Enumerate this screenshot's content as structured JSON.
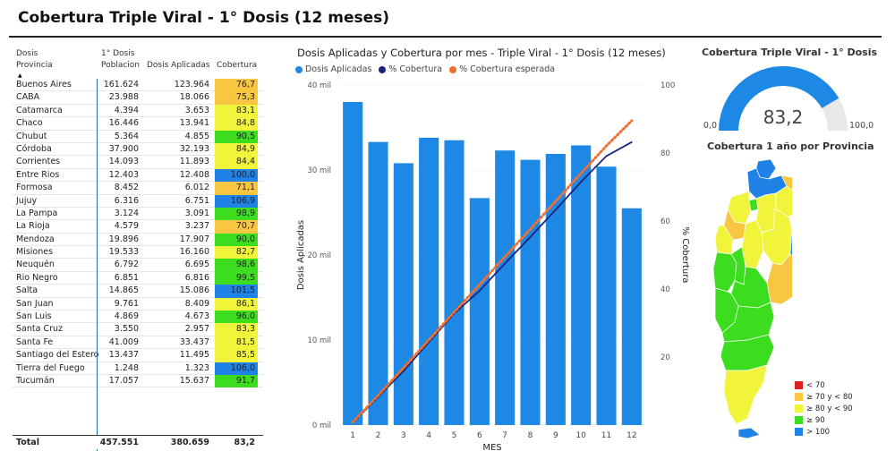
{
  "page_title": "Cobertura Triple Viral - 1° Dosis (12 meses)",
  "table": {
    "headers": {
      "dosis_top": "Dosis",
      "provincia": "Provincia",
      "dosis1_top": "1° Dosis",
      "poblacion": "Poblacion",
      "dosis_aplicadas": "Dosis Aplicadas",
      "cobertura": "Cobertura"
    },
    "rows": [
      {
        "provincia": "Buenos Aires",
        "poblacion": "161.624",
        "dosis": "123.964",
        "cobertura": "76,7",
        "color": "#f9c642"
      },
      {
        "provincia": "CABA",
        "poblacion": "23.988",
        "dosis": "18.066",
        "cobertura": "75,3",
        "color": "#f9c642"
      },
      {
        "provincia": "Catamarca",
        "poblacion": "4.394",
        "dosis": "3.653",
        "cobertura": "83,1",
        "color": "#f0f53c"
      },
      {
        "provincia": "Chaco",
        "poblacion": "16.446",
        "dosis": "13.941",
        "cobertura": "84,8",
        "color": "#f0f53c"
      },
      {
        "provincia": "Chubut",
        "poblacion": "5.364",
        "dosis": "4.855",
        "cobertura": "90,5",
        "color": "#3cdc1e"
      },
      {
        "provincia": "Córdoba",
        "poblacion": "37.900",
        "dosis": "32.193",
        "cobertura": "84,9",
        "color": "#f0f53c"
      },
      {
        "provincia": "Corrientes",
        "poblacion": "14.093",
        "dosis": "11.893",
        "cobertura": "84,4",
        "color": "#f0f53c"
      },
      {
        "provincia": "Entre Rios",
        "poblacion": "12.403",
        "dosis": "12.408",
        "cobertura": "100,0",
        "color": "#1e82e6"
      },
      {
        "provincia": "Formosa",
        "poblacion": "8.452",
        "dosis": "6.012",
        "cobertura": "71,1",
        "color": "#f9c642"
      },
      {
        "provincia": "Jujuy",
        "poblacion": "6.316",
        "dosis": "6.751",
        "cobertura": "106,9",
        "color": "#1e82e6"
      },
      {
        "provincia": "La Pampa",
        "poblacion": "3.124",
        "dosis": "3.091",
        "cobertura": "98,9",
        "color": "#3cdc1e"
      },
      {
        "provincia": "La Rioja",
        "poblacion": "4.579",
        "dosis": "3.237",
        "cobertura": "70,7",
        "color": "#f9c642"
      },
      {
        "provincia": "Mendoza",
        "poblacion": "19.896",
        "dosis": "17.907",
        "cobertura": "90,0",
        "color": "#3cdc1e"
      },
      {
        "provincia": "Misiones",
        "poblacion": "19.533",
        "dosis": "16.160",
        "cobertura": "82,7",
        "color": "#f0f53c"
      },
      {
        "provincia": "Neuquén",
        "poblacion": "6.792",
        "dosis": "6.695",
        "cobertura": "98,6",
        "color": "#3cdc1e"
      },
      {
        "provincia": "Rio Negro",
        "poblacion": "6.851",
        "dosis": "6.816",
        "cobertura": "99,5",
        "color": "#3cdc1e"
      },
      {
        "provincia": "Salta",
        "poblacion": "14.865",
        "dosis": "15.086",
        "cobertura": "101,5",
        "color": "#1e82e6"
      },
      {
        "provincia": "San Juan",
        "poblacion": "9.761",
        "dosis": "8.409",
        "cobertura": "86,1",
        "color": "#f0f53c"
      },
      {
        "provincia": "San Luis",
        "poblacion": "4.869",
        "dosis": "4.673",
        "cobertura": "96,0",
        "color": "#3cdc1e"
      },
      {
        "provincia": "Santa Cruz",
        "poblacion": "3.550",
        "dosis": "2.957",
        "cobertura": "83,3",
        "color": "#f0f53c"
      },
      {
        "provincia": "Santa Fe",
        "poblacion": "41.009",
        "dosis": "33.437",
        "cobertura": "81,5",
        "color": "#f0f53c"
      },
      {
        "provincia": "Santiago del Estero",
        "poblacion": "13.437",
        "dosis": "11.495",
        "cobertura": "85,5",
        "color": "#f0f53c"
      },
      {
        "provincia": "Tierra del Fuego",
        "poblacion": "1.248",
        "dosis": "1.323",
        "cobertura": "106,0",
        "color": "#1e82e6"
      },
      {
        "provincia": "Tucumán",
        "poblacion": "17.057",
        "dosis": "15.637",
        "cobertura": "91,7",
        "color": "#3cdc1e"
      }
    ],
    "total": {
      "label": "Total",
      "poblacion": "457.551",
      "dosis": "380.659",
      "cobertura": "83,2"
    }
  },
  "chart_data": {
    "type": "bar",
    "title": "Dosis Aplicadas y Cobertura por mes - Triple Viral - 1° Dosis (12 meses)",
    "xlabel": "MES",
    "ylabel": "Dosis Aplicadas",
    "y2label": "% Cobertura",
    "categories": [
      "1",
      "2",
      "3",
      "4",
      "5",
      "6",
      "7",
      "8",
      "9",
      "10",
      "11",
      "12"
    ],
    "ylim": [
      0,
      40000
    ],
    "y_ticks": [
      "0 mil",
      "10 mil",
      "20 mil",
      "30 mil",
      "40 mil"
    ],
    "y2lim": [
      0,
      100
    ],
    "y2_ticks": [
      "20",
      "40",
      "60",
      "80",
      "100"
    ],
    "legend": [
      "Dosis Aplicadas",
      "% Cobertura",
      "% Cobertura esperada"
    ],
    "series": [
      {
        "name": "Dosis Aplicadas",
        "kind": "bar",
        "axis": "left",
        "values": [
          38000,
          33300,
          30800,
          33800,
          33500,
          26700,
          32300,
          31200,
          31900,
          32900,
          30400,
          25500
        ]
      },
      {
        "name": "% Cobertura",
        "kind": "line",
        "axis": "right",
        "values": [
          0.6,
          8.3,
          15.9,
          24.4,
          32.8,
          39.5,
          47.5,
          55.3,
          63.3,
          71.5,
          79.1,
          83.2
        ]
      },
      {
        "name": "% Cobertura esperada",
        "kind": "dotted",
        "axis": "right",
        "values": [
          0.8,
          8.7,
          16.8,
          25.0,
          33.2,
          41.3,
          49.5,
          57.6,
          65.8,
          74.0,
          82.1,
          89.5
        ]
      }
    ],
    "colors": {
      "bar": "#1e88e5",
      "line": "#1a237e",
      "expected": "#f07030",
      "legend_dot1": "#1e88e5",
      "legend_dot2": "#1a237e",
      "legend_dot3": "#f07030"
    }
  },
  "gauge": {
    "title": "Cobertura Triple Viral - 1° Dosis",
    "value": 83.2,
    "value_label": "83,2",
    "min": 0,
    "max": 100,
    "min_label": "0,0",
    "max_label": "100,0",
    "color": "#1e88e5",
    "track_color": "#e8e8e8"
  },
  "map": {
    "title": "Cobertura 1 año por Provincia",
    "legend": [
      {
        "label": "< 70",
        "color": "#e02020"
      },
      {
        "label": "≥ 70 y < 80",
        "color": "#f9c642"
      },
      {
        "label": "≥ 80 y < 90",
        "color": "#f0f53c"
      },
      {
        "label": "≥ 90",
        "color": "#3cdc1e"
      },
      {
        "label": "> 100",
        "color": "#1e82e6"
      }
    ]
  }
}
